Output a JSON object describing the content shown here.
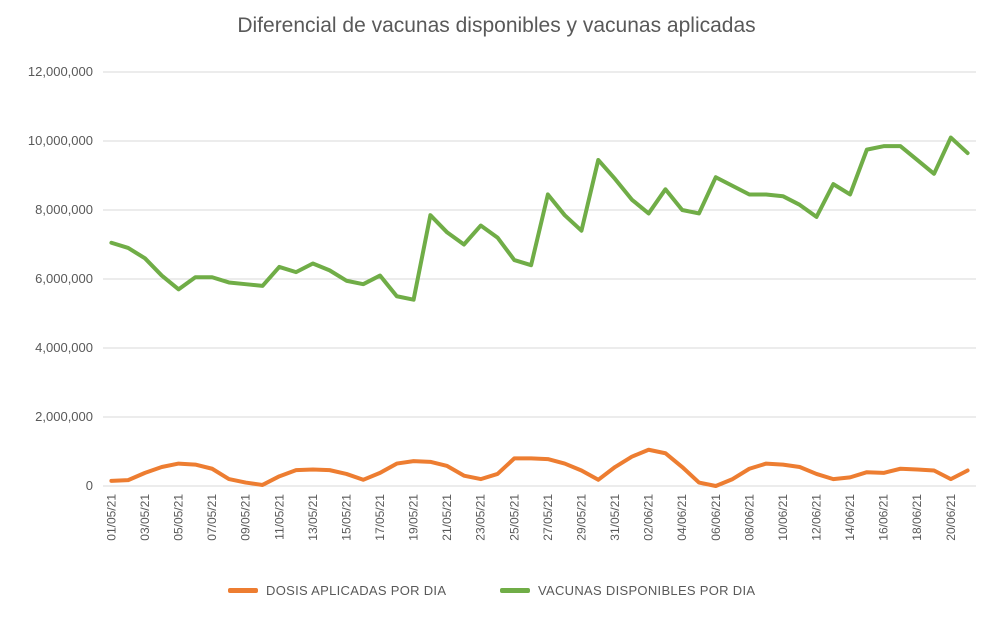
{
  "chart_data": {
    "type": "line",
    "title": "Diferencial de vacunas disponibles  y vacunas aplicadas",
    "xlabel": "",
    "ylabel": "",
    "ylim": [
      0,
      12000000
    ],
    "yticks": [
      0,
      2000000,
      4000000,
      6000000,
      8000000,
      10000000,
      12000000
    ],
    "ytick_labels": [
      "0",
      "2,000,000",
      "4,000,000",
      "6,000,000",
      "8,000,000",
      "10,000,000",
      "12,000,000"
    ],
    "grid": true,
    "legend_position": "bottom",
    "x": [
      "01/05/21",
      "02/05/21",
      "03/05/21",
      "04/05/21",
      "05/05/21",
      "06/05/21",
      "07/05/21",
      "08/05/21",
      "09/05/21",
      "10/05/21",
      "11/05/21",
      "12/05/21",
      "13/05/21",
      "14/05/21",
      "15/05/21",
      "16/05/21",
      "17/05/21",
      "18/05/21",
      "19/05/21",
      "20/05/21",
      "21/05/21",
      "22/05/21",
      "23/05/21",
      "24/05/21",
      "25/05/21",
      "26/05/21",
      "27/05/21",
      "28/05/21",
      "29/05/21",
      "30/05/21",
      "31/05/21",
      "01/06/21",
      "02/06/21",
      "03/06/21",
      "04/06/21",
      "05/06/21",
      "06/06/21",
      "07/06/21",
      "08/06/21",
      "09/06/21",
      "10/06/21",
      "11/06/21",
      "12/06/21",
      "13/06/21",
      "14/06/21",
      "15/06/21",
      "16/06/21",
      "17/06/21",
      "18/06/21",
      "19/06/21",
      "20/06/21",
      "21/06/21"
    ],
    "x_tick_labels": [
      "01/05/21",
      "03/05/21",
      "05/05/21",
      "07/05/21",
      "09/05/21",
      "11/05/21",
      "13/05/21",
      "15/05/21",
      "17/05/21",
      "19/05/21",
      "21/05/21",
      "23/05/21",
      "25/05/21",
      "27/05/21",
      "29/05/21",
      "31/05/21",
      "02/06/21",
      "04/06/21",
      "06/06/21",
      "08/06/21",
      "10/06/21",
      "12/06/21",
      "14/06/21",
      "16/06/21",
      "18/06/21",
      "20/06/21"
    ],
    "series": [
      {
        "name": "DOSIS APLICADAS POR DIA",
        "color": "#ed7d31",
        "values": [
          150000,
          170000,
          380000,
          550000,
          650000,
          620000,
          500000,
          200000,
          100000,
          30000,
          280000,
          460000,
          480000,
          460000,
          350000,
          180000,
          380000,
          650000,
          720000,
          700000,
          580000,
          300000,
          200000,
          350000,
          800000,
          800000,
          780000,
          650000,
          450000,
          180000,
          550000,
          850000,
          1050000,
          950000,
          550000,
          100000,
          0,
          200000,
          500000,
          650000,
          620000,
          550000,
          350000,
          200000,
          250000,
          400000,
          380000,
          500000,
          480000,
          450000,
          200000,
          450000
        ]
      },
      {
        "name": "VACUNAS DISPONIBLES POR DIA",
        "color": "#70ad47",
        "values": [
          7050000,
          6900000,
          6600000,
          6100000,
          5700000,
          6050000,
          6050000,
          5900000,
          5850000,
          5800000,
          6350000,
          6200000,
          6450000,
          6250000,
          5950000,
          5850000,
          6100000,
          5500000,
          5400000,
          7850000,
          7350000,
          7000000,
          7550000,
          7200000,
          6550000,
          6400000,
          8450000,
          7850000,
          7400000,
          9450000,
          8900000,
          8300000,
          7900000,
          8600000,
          8000000,
          7900000,
          8950000,
          8700000,
          8450000,
          8450000,
          8400000,
          8150000,
          7800000,
          8750000,
          8450000,
          9750000,
          9850000,
          9850000,
          9450000,
          9050000,
          10100000,
          9650000
        ]
      }
    ]
  }
}
